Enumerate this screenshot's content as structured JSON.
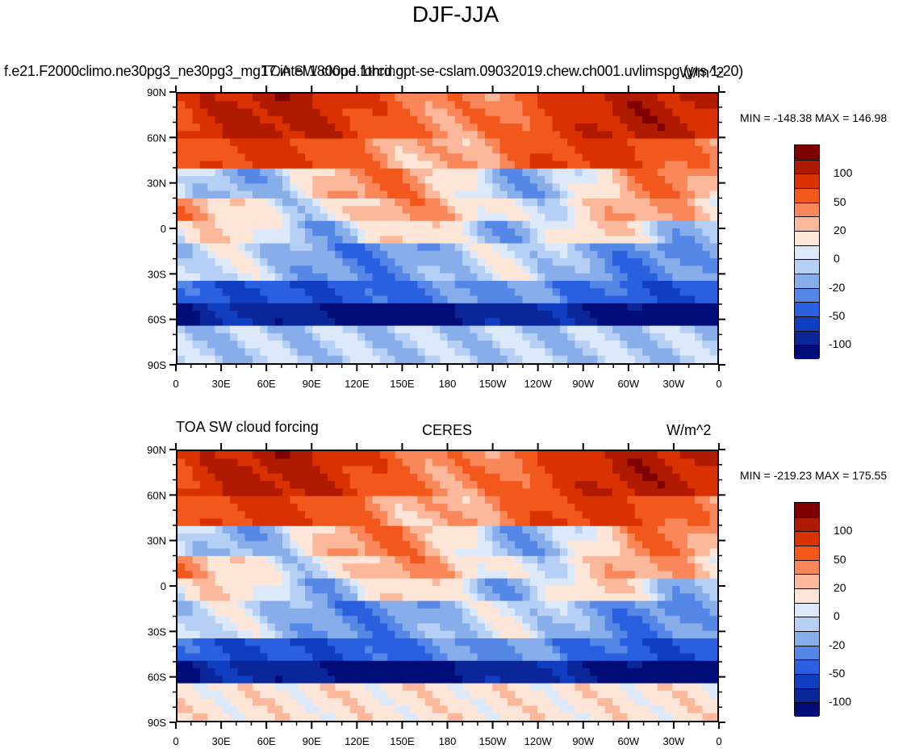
{
  "title": "DJF-JJA",
  "panels": [
    {
      "left_title": "f.e21.F2000climo.ne30pg3_ne30pg3_mg17.intel.1800pe.1thrd.opt-se-cslam.09032019.chew.ch001.uvlimspg (yrs 1-20)",
      "center_title": "TOA SW cloud forcing",
      "right_title": "W/m^2",
      "minmax": "MIN = -148.38 MAX = 146.98"
    },
    {
      "left_title": "TOA SW cloud forcing",
      "center_title": "CERES",
      "right_title": "W/m^2",
      "minmax": "MIN = -219.23 MAX = 175.55"
    }
  ],
  "axes": {
    "lat_labels": [
      "90N",
      "60N",
      "30N",
      "0",
      "30S",
      "60S",
      "90S"
    ],
    "lon_labels": [
      "0",
      "30E",
      "60E",
      "90E",
      "120E",
      "150E",
      "180",
      "150W",
      "120W",
      "90W",
      "60W",
      "30W",
      "0"
    ]
  },
  "colorbar": {
    "labels": [
      "100",
      "50",
      "20",
      "0",
      "-20",
      "-50",
      "-100"
    ],
    "colors": [
      "#7f0000",
      "#b01a00",
      "#d93200",
      "#f2571c",
      "#fa875a",
      "#fcb89a",
      "#fde5d8",
      "#dbe9fa",
      "#b6cff4",
      "#87aeea",
      "#5587e6",
      "#2a5fe0",
      "#103ec0",
      "#0a2699",
      "#000d78"
    ]
  }
}
